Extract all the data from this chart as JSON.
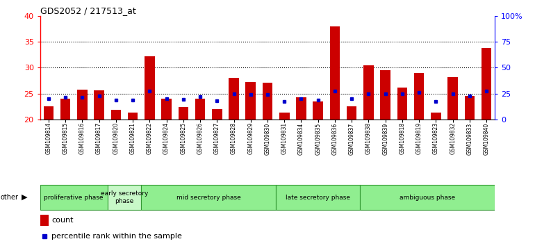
{
  "title": "GDS2052 / 217513_at",
  "samples": [
    "GSM109814",
    "GSM109815",
    "GSM109816",
    "GSM109817",
    "GSM109820",
    "GSM109821",
    "GSM109822",
    "GSM109824",
    "GSM109825",
    "GSM109826",
    "GSM109827",
    "GSM109828",
    "GSM109829",
    "GSM109830",
    "GSM109831",
    "GSM109834",
    "GSM109835",
    "GSM109836",
    "GSM109837",
    "GSM109838",
    "GSM109839",
    "GSM109818",
    "GSM109819",
    "GSM109823",
    "GSM109832",
    "GSM109833",
    "GSM109840"
  ],
  "count_values": [
    22.5,
    24.0,
    25.8,
    25.6,
    21.8,
    21.3,
    32.2,
    24.0,
    22.4,
    24.0,
    22.0,
    28.0,
    27.2,
    27.1,
    21.3,
    24.2,
    23.5,
    38.0,
    22.5,
    30.5,
    29.5,
    26.2,
    29.0,
    21.3,
    28.2,
    24.5,
    33.8
  ],
  "percentile_values": [
    24.0,
    24.2,
    24.3,
    24.5,
    23.7,
    23.7,
    25.5,
    24.0,
    23.8,
    24.4,
    23.6,
    25.0,
    24.8,
    24.8,
    23.5,
    24.0,
    23.7,
    25.5,
    24.0,
    25.0,
    25.0,
    25.0,
    25.2,
    23.5,
    25.0,
    24.5,
    25.5
  ],
  "phases": [
    {
      "name": "proliferative phase",
      "start": 0,
      "end": 4,
      "color": "#90EE90"
    },
    {
      "name": "early secretory\nphase",
      "start": 4,
      "end": 6,
      "color": "#c8f8c8"
    },
    {
      "name": "mid secretory phase",
      "start": 6,
      "end": 14,
      "color": "#90EE90"
    },
    {
      "name": "late secretory phase",
      "start": 14,
      "end": 19,
      "color": "#90EE90"
    },
    {
      "name": "ambiguous phase",
      "start": 19,
      "end": 27,
      "color": "#90EE90"
    }
  ],
  "ylim_left": [
    20,
    40
  ],
  "ylim_right": [
    0,
    100
  ],
  "bar_color": "#cc0000",
  "percentile_color": "#0000cc",
  "tick_bg_color": "#cccccc",
  "phase_border_color": "#339933"
}
